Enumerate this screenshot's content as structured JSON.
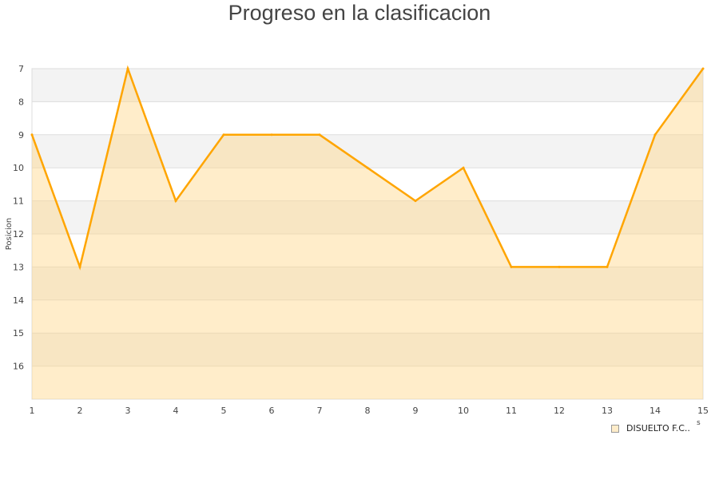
{
  "chart_data": {
    "type": "area",
    "title": "Progreso en la clasificacion",
    "xlabel": "",
    "ylabel": "Posicion",
    "x": [
      1,
      2,
      3,
      4,
      5,
      6,
      7,
      8,
      9,
      10,
      11,
      12,
      13,
      14,
      15
    ],
    "series": [
      {
        "name": "DISUELTO F.C..",
        "values": [
          9,
          13,
          7,
          11,
          9,
          9,
          9,
          10,
          11,
          10,
          13,
          13,
          13,
          9,
          7
        ]
      }
    ],
    "xlim": [
      1,
      15
    ],
    "ylim": [
      17,
      7
    ],
    "y_inverted": true,
    "yticks": [
      7,
      8,
      9,
      10,
      11,
      12,
      13,
      14,
      15,
      16
    ],
    "grid": true,
    "legend_position": "bottom-right",
    "colors": {
      "line": "#ffa500",
      "fill": "#feecc9",
      "band": "#f3f3f3"
    }
  },
  "stray_label": "s"
}
